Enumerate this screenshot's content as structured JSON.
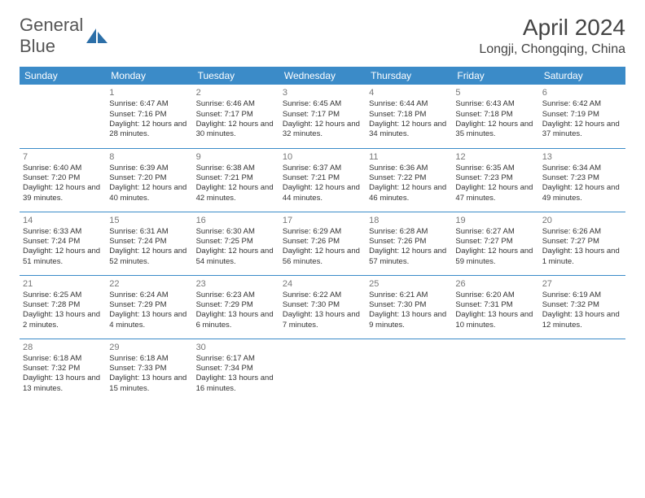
{
  "logo": {
    "text_a": "General",
    "text_b": "Blue"
  },
  "title": "April 2024",
  "location": "Longji, Chongqing, China",
  "colors": {
    "header_bg": "#3b8bc8",
    "header_text": "#ffffff",
    "divider": "#3b8bc8",
    "logo_blue": "#2c6fa8",
    "text": "#333333"
  },
  "weekdays": [
    "Sunday",
    "Monday",
    "Tuesday",
    "Wednesday",
    "Thursday",
    "Friday",
    "Saturday"
  ],
  "weeks": [
    [
      null,
      {
        "n": "1",
        "sr": "6:47 AM",
        "ss": "7:16 PM",
        "dl": "12 hours and 28 minutes."
      },
      {
        "n": "2",
        "sr": "6:46 AM",
        "ss": "7:17 PM",
        "dl": "12 hours and 30 minutes."
      },
      {
        "n": "3",
        "sr": "6:45 AM",
        "ss": "7:17 PM",
        "dl": "12 hours and 32 minutes."
      },
      {
        "n": "4",
        "sr": "6:44 AM",
        "ss": "7:18 PM",
        "dl": "12 hours and 34 minutes."
      },
      {
        "n": "5",
        "sr": "6:43 AM",
        "ss": "7:18 PM",
        "dl": "12 hours and 35 minutes."
      },
      {
        "n": "6",
        "sr": "6:42 AM",
        "ss": "7:19 PM",
        "dl": "12 hours and 37 minutes."
      }
    ],
    [
      {
        "n": "7",
        "sr": "6:40 AM",
        "ss": "7:20 PM",
        "dl": "12 hours and 39 minutes."
      },
      {
        "n": "8",
        "sr": "6:39 AM",
        "ss": "7:20 PM",
        "dl": "12 hours and 40 minutes."
      },
      {
        "n": "9",
        "sr": "6:38 AM",
        "ss": "7:21 PM",
        "dl": "12 hours and 42 minutes."
      },
      {
        "n": "10",
        "sr": "6:37 AM",
        "ss": "7:21 PM",
        "dl": "12 hours and 44 minutes."
      },
      {
        "n": "11",
        "sr": "6:36 AM",
        "ss": "7:22 PM",
        "dl": "12 hours and 46 minutes."
      },
      {
        "n": "12",
        "sr": "6:35 AM",
        "ss": "7:23 PM",
        "dl": "12 hours and 47 minutes."
      },
      {
        "n": "13",
        "sr": "6:34 AM",
        "ss": "7:23 PM",
        "dl": "12 hours and 49 minutes."
      }
    ],
    [
      {
        "n": "14",
        "sr": "6:33 AM",
        "ss": "7:24 PM",
        "dl": "12 hours and 51 minutes."
      },
      {
        "n": "15",
        "sr": "6:31 AM",
        "ss": "7:24 PM",
        "dl": "12 hours and 52 minutes."
      },
      {
        "n": "16",
        "sr": "6:30 AM",
        "ss": "7:25 PM",
        "dl": "12 hours and 54 minutes."
      },
      {
        "n": "17",
        "sr": "6:29 AM",
        "ss": "7:26 PM",
        "dl": "12 hours and 56 minutes."
      },
      {
        "n": "18",
        "sr": "6:28 AM",
        "ss": "7:26 PM",
        "dl": "12 hours and 57 minutes."
      },
      {
        "n": "19",
        "sr": "6:27 AM",
        "ss": "7:27 PM",
        "dl": "12 hours and 59 minutes."
      },
      {
        "n": "20",
        "sr": "6:26 AM",
        "ss": "7:27 PM",
        "dl": "13 hours and 1 minute."
      }
    ],
    [
      {
        "n": "21",
        "sr": "6:25 AM",
        "ss": "7:28 PM",
        "dl": "13 hours and 2 minutes."
      },
      {
        "n": "22",
        "sr": "6:24 AM",
        "ss": "7:29 PM",
        "dl": "13 hours and 4 minutes."
      },
      {
        "n": "23",
        "sr": "6:23 AM",
        "ss": "7:29 PM",
        "dl": "13 hours and 6 minutes."
      },
      {
        "n": "24",
        "sr": "6:22 AM",
        "ss": "7:30 PM",
        "dl": "13 hours and 7 minutes."
      },
      {
        "n": "25",
        "sr": "6:21 AM",
        "ss": "7:30 PM",
        "dl": "13 hours and 9 minutes."
      },
      {
        "n": "26",
        "sr": "6:20 AM",
        "ss": "7:31 PM",
        "dl": "13 hours and 10 minutes."
      },
      {
        "n": "27",
        "sr": "6:19 AM",
        "ss": "7:32 PM",
        "dl": "13 hours and 12 minutes."
      }
    ],
    [
      {
        "n": "28",
        "sr": "6:18 AM",
        "ss": "7:32 PM",
        "dl": "13 hours and 13 minutes."
      },
      {
        "n": "29",
        "sr": "6:18 AM",
        "ss": "7:33 PM",
        "dl": "13 hours and 15 minutes."
      },
      {
        "n": "30",
        "sr": "6:17 AM",
        "ss": "7:34 PM",
        "dl": "13 hours and 16 minutes."
      },
      null,
      null,
      null,
      null
    ]
  ],
  "labels": {
    "sunrise": "Sunrise:",
    "sunset": "Sunset:",
    "daylight": "Daylight:"
  }
}
